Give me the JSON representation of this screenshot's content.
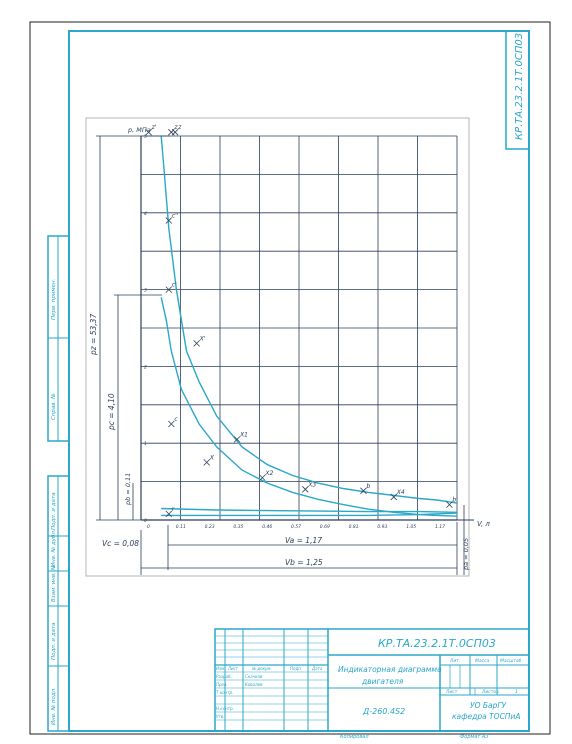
{
  "stamp_code": "КР.ТА.23.2.1Т.0СП03",
  "chart_data": {
    "type": "line",
    "title": "",
    "xlabel": "V, л",
    "ylabel": "p, МПа",
    "xlim": [
      0,
      1.25
    ],
    "ylim": [
      0,
      5.0
    ],
    "x_ticks": [
      "0",
      "0.11",
      "0.23",
      "0.35",
      "0.46",
      "0.57",
      "0.69",
      "0.81",
      "0.93",
      "1.05",
      "1.17"
    ],
    "y_ticks": [
      "0",
      "1",
      "2",
      "3",
      "4",
      "5"
    ],
    "point_labels": [
      "z'",
      "z",
      "z",
      "c''",
      "c'",
      "X'",
      "c",
      "X1",
      "X",
      "X2",
      "X3",
      "b",
      "X4",
      "b'",
      "r"
    ],
    "series": [
      {
        "x": [
          0.08,
          0.09,
          0.11,
          0.14,
          0.18,
          0.23,
          0.3,
          0.4,
          0.5,
          0.6,
          0.7,
          0.8,
          0.9,
          1.0,
          1.1,
          1.17,
          1.25
        ],
        "y": [
          5.0,
          4.6,
          3.8,
          3.0,
          2.2,
          1.8,
          1.35,
          0.95,
          0.72,
          0.58,
          0.48,
          0.41,
          0.36,
          0.32,
          0.28,
          0.26,
          0.22
        ]
      },
      {
        "x": [
          0.08,
          0.1,
          0.12,
          0.16,
          0.23,
          0.3,
          0.4,
          0.5,
          0.6,
          0.7,
          0.8,
          0.9,
          1.0,
          1.1,
          1.17,
          1.25
        ],
        "y": [
          2.9,
          2.6,
          2.2,
          1.7,
          1.25,
          0.95,
          0.65,
          0.48,
          0.36,
          0.27,
          0.2,
          0.14,
          0.1,
          0.07,
          0.06,
          0.05
        ]
      },
      {
        "x": [
          0.08,
          0.3,
          0.6,
          0.9,
          1.1,
          1.25
        ],
        "y": [
          0.15,
          0.13,
          0.12,
          0.11,
          0.11,
          0.1
        ]
      },
      {
        "x": [
          0.08,
          0.3,
          0.6,
          0.9,
          1.1,
          1.25
        ],
        "y": [
          0.06,
          0.06,
          0.06,
          0.06,
          0.07,
          0.09
        ]
      }
    ]
  },
  "dims": {
    "pz": "pz = 53,37",
    "pc": "pc = 4,10",
    "pb": "pb = 0,11",
    "vc": "Vc = 0,08",
    "va": "Va = 1,17",
    "vb": "Vb = 1,25",
    "pa": "pa = 0,05"
  },
  "left_strip": {
    "labels": [
      "Перв. примен.",
      "Справ. №",
      "Подп. и дата",
      "Инв. № дубл.",
      "Взам. инв. №",
      "Подп. и дата",
      "Инв. № подл."
    ]
  },
  "title_block": {
    "code": "КР.ТА.23.2.1Т.0СП03",
    "name_line1": "Индикаторная диаграмма",
    "name_line2": "двигателя",
    "engine": "Д-260.4S2",
    "org_line1": "УО БарГУ",
    "org_line2": "кафедра ТОСПиА",
    "col_headers": [
      "Изм",
      "Лист",
      "№ докум.",
      "Подп.",
      "Дата"
    ],
    "roles": [
      "Разраб.",
      "Пров.",
      "Т.контр.",
      "Н.контр.",
      "Утв."
    ],
    "names": [
      "Скачков",
      "Ковалев"
    ],
    "lit_mass_scale": [
      "Лит.",
      "Масса",
      "Масштаб"
    ],
    "sheet_label": "Лист",
    "sheets_label": "Листов",
    "sheets_value": "1",
    "copied": "Копировал",
    "format": "Формат    А3"
  }
}
